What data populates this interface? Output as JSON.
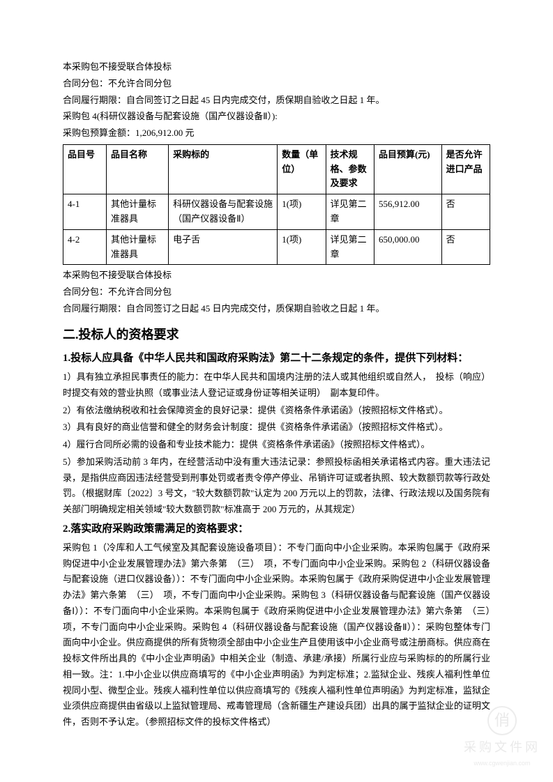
{
  "intro": {
    "line1": "本采购包不接受联合体投标",
    "line2": "合同分包：不允许合同分包",
    "line3": "合同履行期限：自合同签订之日起 45 日内完成交付，质保期自验收之日起 1 年。",
    "line4": "采购包 4(科研仪器设备与配套设施（国产仪器设备Ⅱ）):",
    "line5": "采购包预算金额：1,206,912.00 元"
  },
  "table": {
    "headers": [
      "品目号",
      "品目名称",
      "采购标的",
      "数量（单位）",
      "技术规格、参数及要求",
      "品目预算(元)",
      "是否允许进口产品"
    ],
    "rows": [
      [
        "4-1",
        "其他计量标准器具",
        "科研仪器设备与配套设施（国产仪器设备Ⅱ）",
        "1(项)",
        "详见第二章",
        "556,912.00",
        "否"
      ],
      [
        "4-2",
        "其他计量标准器具",
        "电子舌",
        "1(项)",
        "详见第二章",
        "650,000.00",
        "否"
      ]
    ],
    "col_widths": [
      "50px",
      "72px",
      "126px",
      "56px",
      "56px",
      "78px",
      "56px"
    ]
  },
  "after_table": {
    "line1": "本采购包不接受联合体投标",
    "line2": "合同分包：不允许合同分包",
    "line3": "合同履行期限：自合同签订之日起 45 日内完成交付，质保期自验收之日起 1 年。"
  },
  "section2_title": "二.投标人的资格要求",
  "sub1_title": "1.投标人应具备《中华人民共和国政府采购法》第二十二条规定的条件，提供下列材料：",
  "sub1_items": [
    "1）具有独立承担民事责任的能力：在中华人民共和国境内注册的法人或其他组织或自然人，　投标（响应）时提交有效的营业执照（或事业法人登记证或身份证等相关证明）　副本复印件。",
    "2）有依法缴纳税收和社会保障资金的良好记录：提供《资格条件承诺函》（按照招标文件格式）。",
    "3）具有良好的商业信誉和健全的财务会计制度：提供《资格条件承诺函》（按照招标文件格式）。",
    "4）履行合同所必需的设备和专业技术能力：提供《资格条件承诺函》（按照招标文件格式）。",
    "5）参加采购活动前 3 年内，在经营活动中没有重大违法记录：参照投标函相关承诺格式内容。重大违法记录，是指供应商因违法经营受到刑事处罚或者责令停产停业、吊销许可证或者执照、较大数额罚款等行政处罚。（根据财库〔2022〕3 号文，\"较大数额罚款\"认定为 200 万元以上的罚款，法律、行政法规以及国务院有关部门明确规定相关领域\"较大数额罚款\"标准高于 200 万元的，从其规定）"
  ],
  "sub2_title": "2.落实政府采购政策需满足的资格要求：",
  "sub2_body": "采购包 1（冷库和人工气候室及其配套设施设备项目）：不专门面向中小企业采购。本采购包属于《政府采购促进中小企业发展管理办法》第六条第　（三）　项，不专门面向中小企业采购。采购包 2（科研仪器设备与配套设施（进口仪器设备））：不专门面向中小企业采购。本采购包属于《政府采购促进中小企业发展管理办法》第六条第　（三）　项，不专门面向中小企业采购。采购包 3（科研仪器设备与配套设施（国产仪器设备Ⅰ））：不专门面向中小企业采购。本采购包属于《政府采购促进中小企业发展管理办法》第六条第　（三）　项，不专门面向中小企业采购。采购包 4（科研仪器设备与配套设施（国产仪器设备Ⅱ））：采购包整体专门面向中小企业。供应商提供的所有货物须全部由中小企业生产且使用该中小企业商号或注册商标。供应商在投标文件所出具的《中小企业声明函》中相关企业（制造、承建/承接）所属行业应与采购标的的所属行业相一致。注：1.中小企业以供应商填写的《中小企业声明函》为判定标准；2.监狱企业、残疾人福利性单位视同小型、微型企业。残疾人福利性单位以供应商填写的《残疾人福利性单位声明函》为判定标准，监狱企业须供应商提供由省级以上监狱管理局、戒毒管理局（含新疆生产建设兵团）出具的属于监狱企业的证明文件，否则不予认定。（参照招标文件的投标文件格式）",
  "watermark": {
    "main": "采购文件网",
    "sub": "www.cgwenjian.com",
    "glyph": "俏"
  }
}
